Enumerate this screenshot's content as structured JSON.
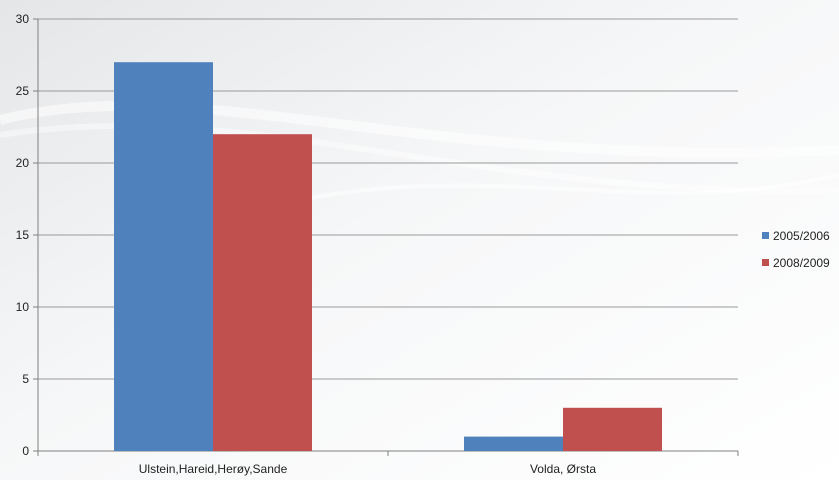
{
  "chart_data": {
    "type": "bar",
    "categories": [
      "Ulstein,Hareid,Herøy,Sande",
      "Volda, Ørsta"
    ],
    "series": [
      {
        "name": "2005/2006",
        "values": [
          27,
          1
        ],
        "color": "#4f81bd"
      },
      {
        "name": "2008/2009",
        "values": [
          22,
          3
        ],
        "color": "#c0504d"
      }
    ],
    "ylim": [
      0,
      30
    ],
    "yticks": [
      0,
      5,
      10,
      15,
      20,
      25,
      30
    ],
    "grid": true,
    "legend_position": "right"
  }
}
